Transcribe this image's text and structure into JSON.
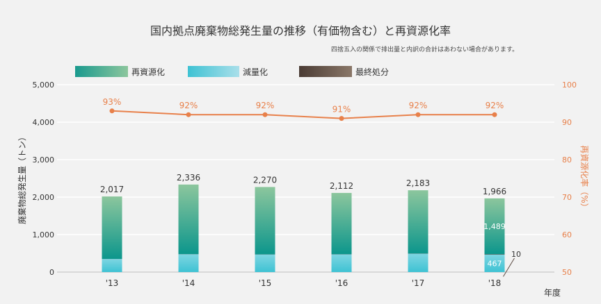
{
  "title": "国内拠点廃棄物総発生量の推移（有価物含む）と再資源化率",
  "note": "四捨五入の関係で排出量と内訳の合計はあわない場合があります。",
  "chart_data": {
    "type": "bar",
    "categories": [
      "'13",
      "'14",
      "'15",
      "'16",
      "'17",
      "'18"
    ],
    "xlabel": "年度",
    "ylabel": "廃棄物総発生量（トン）",
    "y2label": "再資源化率（%）",
    "ylim": [
      0,
      5000
    ],
    "y2lim": [
      50,
      100
    ],
    "yticks": [
      "0",
      "1,000",
      "2,000",
      "3,000",
      "4,000",
      "5,000"
    ],
    "y2ticks": [
      "50",
      "60",
      "70",
      "80",
      "90",
      "100"
    ],
    "legend_position": "top-left",
    "series": [
      {
        "name": "再資源化",
        "stack": "waste",
        "color": "#1a9a8e",
        "values": [
          1665,
          1856,
          1797,
          1634,
          1687,
          1489
        ]
      },
      {
        "name": "減量化",
        "stack": "waste",
        "color": "#5ccbd8",
        "values": [
          350,
          478,
          470,
          475,
          493,
          467
        ]
      },
      {
        "name": "最終処分",
        "stack": "waste",
        "color": "#5a4a42",
        "values": [
          2,
          2,
          3,
          3,
          3,
          10
        ]
      }
    ],
    "totals": [
      2017,
      2336,
      2270,
      2112,
      2183,
      1966
    ],
    "total_labels": [
      "2,017",
      "2,336",
      "2,270",
      "2,112",
      "2,183",
      "1,966"
    ],
    "rate": {
      "axis": "right",
      "color": "#e8804a",
      "values": [
        93,
        92,
        92,
        91,
        92,
        92
      ],
      "labels": [
        "93%",
        "92%",
        "92%",
        "91%",
        "92%",
        "92%"
      ]
    },
    "segment_labels": [
      {
        "category": "'18",
        "series": "再資源化",
        "text": "1,489"
      },
      {
        "category": "'18",
        "series": "減量化",
        "text": "467"
      },
      {
        "category": "'18",
        "series": "最終処分",
        "text": "10"
      }
    ],
    "grid": true
  }
}
